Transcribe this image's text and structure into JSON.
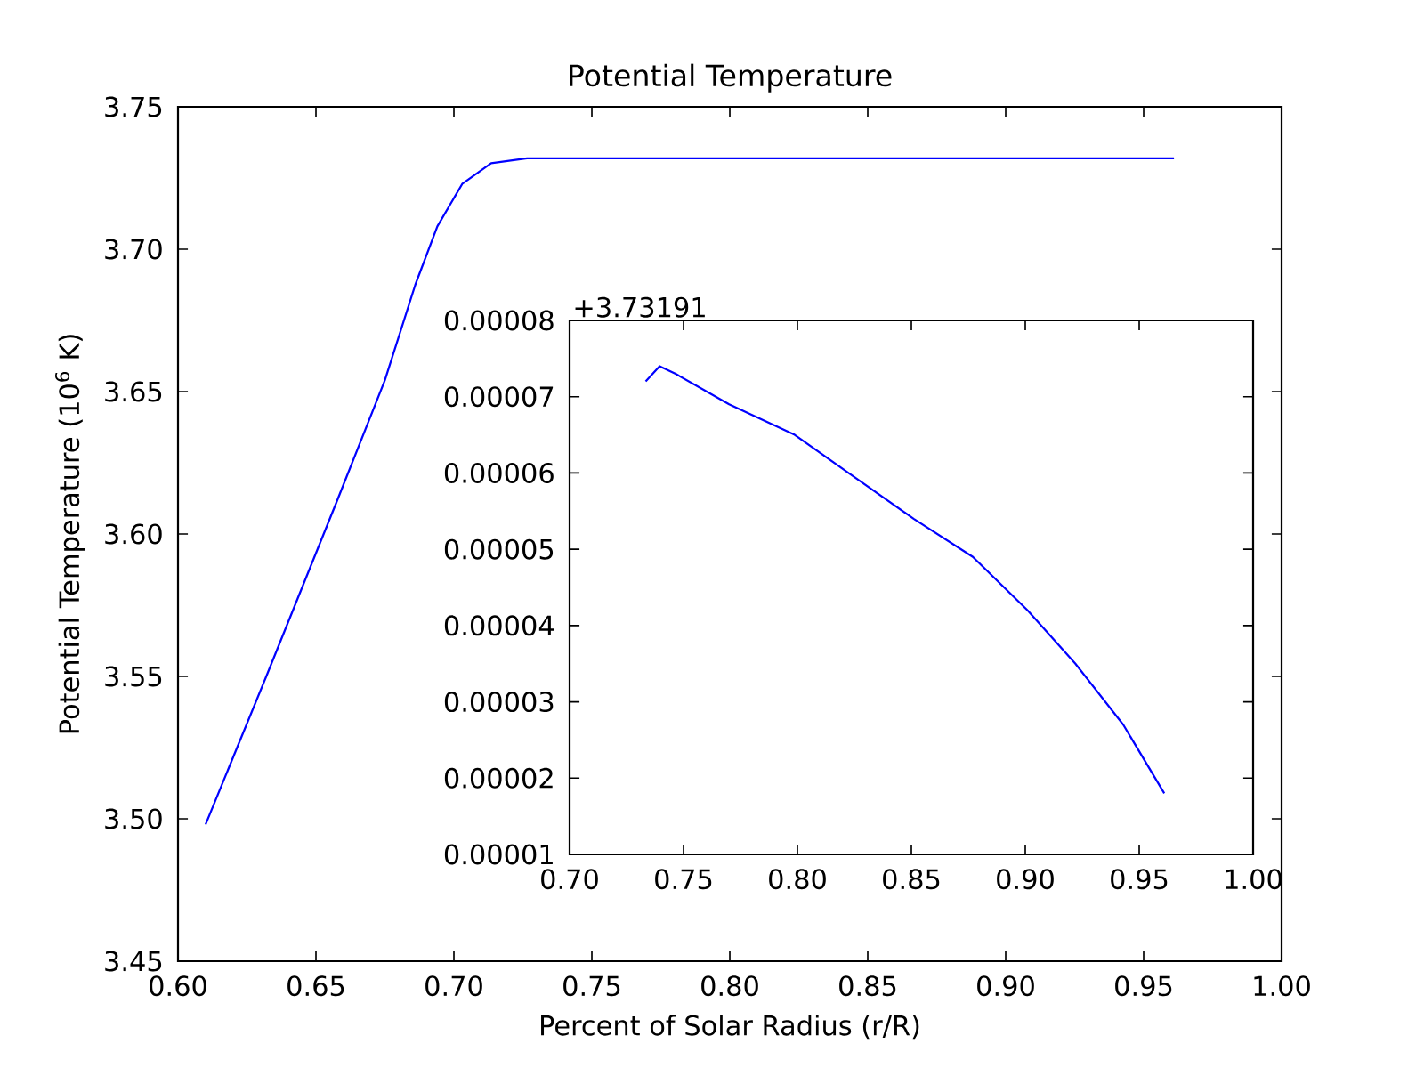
{
  "chart_data": [
    {
      "type": "line",
      "title": "Potential Temperature",
      "xlabel": "Percent of Solar Radius (r/R)",
      "ylabel": "Potential Temperature (10$^{6}$  K)",
      "x": [
        0.61,
        0.632,
        0.658,
        0.675,
        0.686,
        0.694,
        0.703,
        0.7135,
        0.7265,
        0.8,
        0.9,
        0.961
      ],
      "series": [
        {
          "color": "#0000ff",
          "values": [
            3.498,
            3.55,
            3.6125,
            3.654,
            3.6875,
            3.708,
            3.7229,
            3.7302,
            3.7319,
            3.7319,
            3.7319,
            3.7319
          ]
        }
      ],
      "xlim": [
        0.6,
        1.0
      ],
      "ylim": [
        3.45,
        3.75
      ],
      "xticks": [
        {
          "value": 0.6,
          "label": "0.60"
        },
        {
          "value": 0.65,
          "label": "0.65"
        },
        {
          "value": 0.7,
          "label": "0.70"
        },
        {
          "value": 0.75,
          "label": "0.75"
        },
        {
          "value": 0.8,
          "label": "0.80"
        },
        {
          "value": 0.85,
          "label": "0.85"
        },
        {
          "value": 0.9,
          "label": "0.90"
        },
        {
          "value": 0.95,
          "label": "0.95"
        },
        {
          "value": 1.0,
          "label": "1.00"
        }
      ],
      "yticks": [
        {
          "value": 3.45,
          "label": "3.45"
        },
        {
          "value": 3.5,
          "label": "3.50"
        },
        {
          "value": 3.55,
          "label": "3.55"
        },
        {
          "value": 3.6,
          "label": "3.60"
        },
        {
          "value": 3.65,
          "label": "3.65"
        },
        {
          "value": 3.7,
          "label": "3.70"
        },
        {
          "value": 3.75,
          "label": "3.75"
        }
      ]
    },
    {
      "type": "line",
      "annotations": [
        "+3.73191"
      ],
      "x": [
        0.7334,
        0.7395,
        0.7465,
        0.77,
        0.7988,
        0.8224,
        0.851,
        0.877,
        0.901,
        0.922,
        0.943,
        0.961
      ],
      "series": [
        {
          "color": "#0000ff",
          "values": [
            7.2e-05,
            7.4e-05,
            7.3e-05,
            6.9e-05,
            6.5e-05,
            6e-05,
            5.4e-05,
            4.9e-05,
            4.2e-05,
            3.5e-05,
            2.7e-05,
            1.8e-05
          ]
        }
      ],
      "xlim": [
        0.7,
        1.0
      ],
      "ylim": [
        1e-05,
        8e-05
      ],
      "xticks": [
        {
          "value": 0.7,
          "label": "0.70"
        },
        {
          "value": 0.75,
          "label": "0.75"
        },
        {
          "value": 0.8,
          "label": "0.80"
        },
        {
          "value": 0.85,
          "label": "0.85"
        },
        {
          "value": 0.9,
          "label": "0.90"
        },
        {
          "value": 0.95,
          "label": "0.95"
        },
        {
          "value": 1.0,
          "label": "1.00"
        }
      ],
      "yticks": [
        {
          "value": 1e-05,
          "label": "0.00001"
        },
        {
          "value": 2e-05,
          "label": "0.00002"
        },
        {
          "value": 3e-05,
          "label": "0.00003"
        },
        {
          "value": 4e-05,
          "label": "0.00004"
        },
        {
          "value": 5e-05,
          "label": "0.00005"
        },
        {
          "value": 6e-05,
          "label": "0.00006"
        },
        {
          "value": 7e-05,
          "label": "0.00007"
        },
        {
          "value": 8e-05,
          "label": "0.00008"
        }
      ]
    }
  ]
}
